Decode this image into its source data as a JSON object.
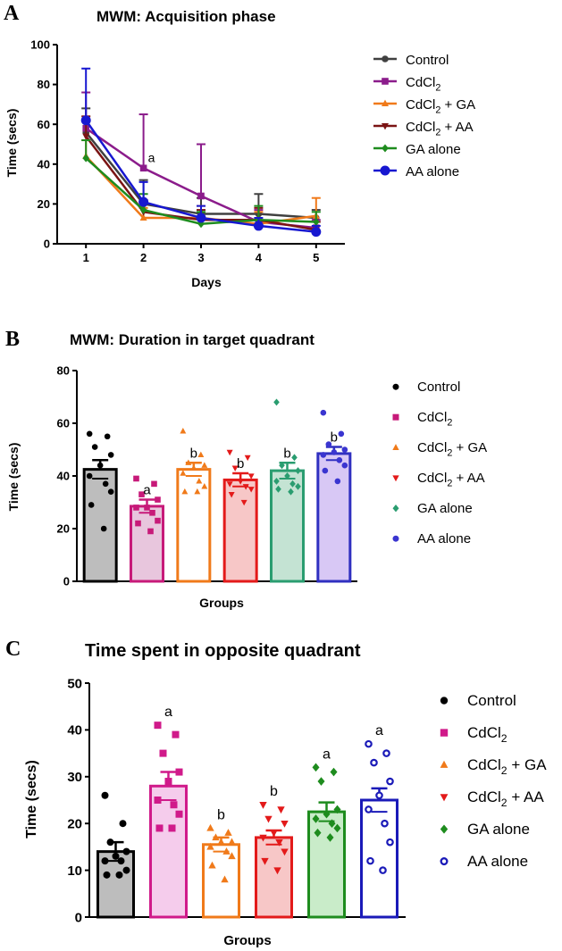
{
  "chart_data": [
    {
      "panel": "A",
      "type": "line",
      "title": "MWM: Acquisition phase",
      "xlabel": "Days",
      "ylabel": "Time (secs)",
      "x": [
        1,
        2,
        3,
        4,
        5
      ],
      "ylim": [
        0,
        100
      ],
      "yticks": [
        0,
        20,
        40,
        60,
        80,
        100
      ],
      "series": [
        {
          "name": "Control",
          "sub": "",
          "after": "",
          "color": "#404040",
          "marker": "circle",
          "values": [
            56,
            20,
            15,
            15,
            13
          ],
          "err": [
            12,
            12,
            8,
            10,
            4
          ]
        },
        {
          "name": "CdCl",
          "sub": "2",
          "after": "",
          "color": "#8B1C8B",
          "marker": "square",
          "values": [
            58,
            38,
            24,
            11,
            8
          ],
          "err": [
            18,
            27,
            26,
            6,
            4
          ]
        },
        {
          "name": "CdCl",
          "sub": "2",
          "after": " + GA",
          "color": "#F07A1A",
          "marker": "triangle",
          "values": [
            44,
            13,
            13,
            10,
            14
          ],
          "err": [
            8,
            5,
            6,
            6,
            9
          ]
        },
        {
          "name": "CdCl",
          "sub": "2",
          "after": " + AA",
          "color": "#7B1414",
          "marker": "triangle-down",
          "values": [
            54,
            16,
            12,
            12,
            7
          ],
          "err": [
            10,
            6,
            5,
            6,
            4
          ]
        },
        {
          "name": "GA alone",
          "sub": "",
          "after": "",
          "color": "#1E8C1E",
          "marker": "diamond",
          "values": [
            43,
            17,
            10,
            12,
            11
          ],
          "err": [
            9,
            8,
            6,
            7,
            5
          ]
        },
        {
          "name": "AA alone",
          "sub": "",
          "after": "",
          "color": "#1717D0",
          "marker": "circle",
          "values": [
            62,
            21,
            13,
            9,
            6
          ],
          "err": [
            26,
            10,
            6,
            4,
            3
          ]
        }
      ],
      "annotations": [
        {
          "x": 2,
          "y": 41,
          "text": "a"
        }
      ]
    },
    {
      "panel": "B",
      "type": "bar",
      "title": "MWM: Duration in target quadrant",
      "xlabel": "Groups",
      "ylabel": "Time (secs)",
      "ylim": [
        0,
        80
      ],
      "yticks": [
        0,
        20,
        40,
        60,
        80
      ],
      "categories": [
        "Control",
        "CdCl2",
        "CdCl2 + GA",
        "CdCl2 + AA",
        "GA alone",
        "AA alone"
      ],
      "series": [
        {
          "name": "Control",
          "sub": "",
          "after": "",
          "fill": "#bdbdbd",
          "stroke": "#000000",
          "marker": "circle",
          "pointColor": "#000000",
          "mean": 42.5,
          "sem": 3.5,
          "sig": "",
          "points": [
            56,
            55,
            51,
            48,
            44,
            40,
            37,
            34,
            29,
            20
          ]
        },
        {
          "name": "CdCl",
          "sub": "2",
          "after": "",
          "fill": "#e8c6dd",
          "stroke": "#c71a79",
          "marker": "square",
          "pointColor": "#c71a79",
          "mean": 28.5,
          "sem": 2.5,
          "sig": "a",
          "points": [
            39,
            37,
            33,
            31,
            28,
            28,
            26,
            23,
            22,
            19
          ]
        },
        {
          "name": "CdCl",
          "sub": "2",
          "after": " + GA",
          "fill": "#ffffff",
          "stroke": "#f07a1a",
          "marker": "triangle",
          "pointColor": "#f07a1a",
          "mean": 42.5,
          "sem": 2.5,
          "sig": "b",
          "points": [
            57,
            48,
            45,
            44,
            43,
            41,
            38,
            36,
            34,
            34
          ]
        },
        {
          "name": "CdCl",
          "sub": "2",
          "after": " + AA",
          "fill": "#f7c7c7",
          "stroke": "#e31a1a",
          "marker": "triangle-down",
          "pointColor": "#e31a1a",
          "mean": 38.5,
          "sem": 2.5,
          "sig": "b",
          "points": [
            49,
            47,
            43,
            40,
            38,
            37,
            36,
            35,
            33,
            30
          ]
        },
        {
          "name": "GA alone",
          "sub": "",
          "after": "",
          "fill": "#c4e3d3",
          "stroke": "#2a9d70",
          "marker": "diamond",
          "pointColor": "#2a9d70",
          "mean": 42,
          "sem": 3,
          "sig": "b",
          "points": [
            68,
            47,
            44,
            42,
            40,
            38,
            37,
            36,
            35,
            34
          ]
        },
        {
          "name": "AA alone",
          "sub": "",
          "after": "",
          "fill": "#d8c8f5",
          "stroke": "#3030c0",
          "marker": "dot",
          "pointColor": "#3a35d0",
          "mean": 48.5,
          "sem": 2.5,
          "sig": "b",
          "points": [
            64,
            56,
            52,
            50,
            49,
            48,
            46,
            44,
            42,
            38
          ]
        }
      ]
    },
    {
      "panel": "C",
      "type": "bar",
      "title": "Time spent in opposite quadrant",
      "xlabel": "Groups",
      "ylabel": "Time (secs)",
      "ylim": [
        0,
        50
      ],
      "yticks": [
        0,
        10,
        20,
        30,
        40,
        50
      ],
      "categories": [
        "Control",
        "CdCl2",
        "CdCl2 + GA",
        "CdCl2 + AA",
        "GA alone",
        "AA alone"
      ],
      "series": [
        {
          "name": "Control",
          "sub": "",
          "after": "",
          "fill": "#bdbdbd",
          "stroke": "#000000",
          "marker": "circle",
          "pointColor": "#000000",
          "mean": 14,
          "sem": 2,
          "sig": "",
          "points": [
            26,
            20,
            16,
            14,
            13,
            12,
            12,
            10,
            9,
            9
          ]
        },
        {
          "name": "CdCl",
          "sub": "2",
          "after": "",
          "fill": "#f5ccec",
          "stroke": "#d01a8a",
          "marker": "square",
          "pointColor": "#d01a8a",
          "mean": 28,
          "sem": 3,
          "sig": "a",
          "points": [
            41,
            39,
            35,
            31,
            29,
            25,
            24,
            22,
            19,
            19
          ]
        },
        {
          "name": "CdCl",
          "sub": "2",
          "after": " + GA",
          "fill": "#ffffff",
          "stroke": "#f07a1a",
          "marker": "triangle",
          "pointColor": "#f07a1a",
          "mean": 15.5,
          "sem": 1.5,
          "sig": "b",
          "points": [
            19,
            18,
            17,
            16,
            16,
            15,
            14,
            13,
            11,
            8
          ]
        },
        {
          "name": "CdCl",
          "sub": "2",
          "after": " + AA",
          "fill": "#f7c7c7",
          "stroke": "#e31a1a",
          "marker": "triangle-down",
          "pointColor": "#e31a1a",
          "mean": 17,
          "sem": 1.5,
          "sig": "b",
          "points": [
            24,
            23,
            21,
            20,
            18,
            17,
            16,
            14,
            12,
            10
          ]
        },
        {
          "name": "GA alone",
          "sub": "",
          "after": "",
          "fill": "#c9ecc9",
          "stroke": "#1e8c1e",
          "marker": "diamond",
          "pointColor": "#1e8c1e",
          "mean": 22.5,
          "sem": 2,
          "sig": "a",
          "points": [
            32,
            31,
            29,
            23,
            22,
            21,
            20,
            19,
            18,
            17
          ]
        },
        {
          "name": "AA alone",
          "sub": "",
          "after": "",
          "fill": "#ffffff",
          "stroke": "#1a1ab8",
          "marker": "ring",
          "pointColor": "#1a1ab8",
          "mean": 25,
          "sem": 2.5,
          "sig": "a",
          "points": [
            37,
            35,
            33,
            29,
            26,
            23,
            20,
            16,
            12,
            10
          ]
        }
      ]
    }
  ]
}
